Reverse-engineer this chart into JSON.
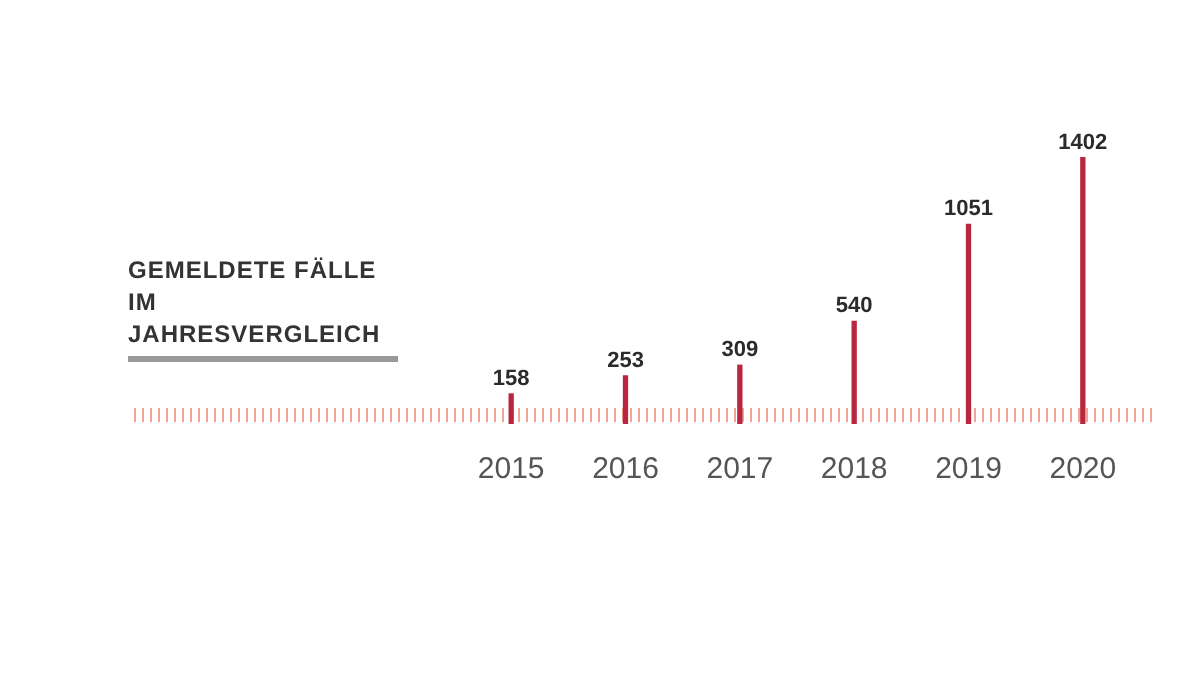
{
  "chart_data": {
    "type": "bar",
    "title": "GEMELDETE FÄLLE IM JAHRESVERGLEICH",
    "categories": [
      "2015",
      "2016",
      "2017",
      "2018",
      "2019",
      "2020"
    ],
    "values": [
      158,
      253,
      309,
      540,
      1051,
      1402
    ],
    "color": "#b8263f",
    "data_labels": true,
    "grid": false,
    "legend": false
  }
}
